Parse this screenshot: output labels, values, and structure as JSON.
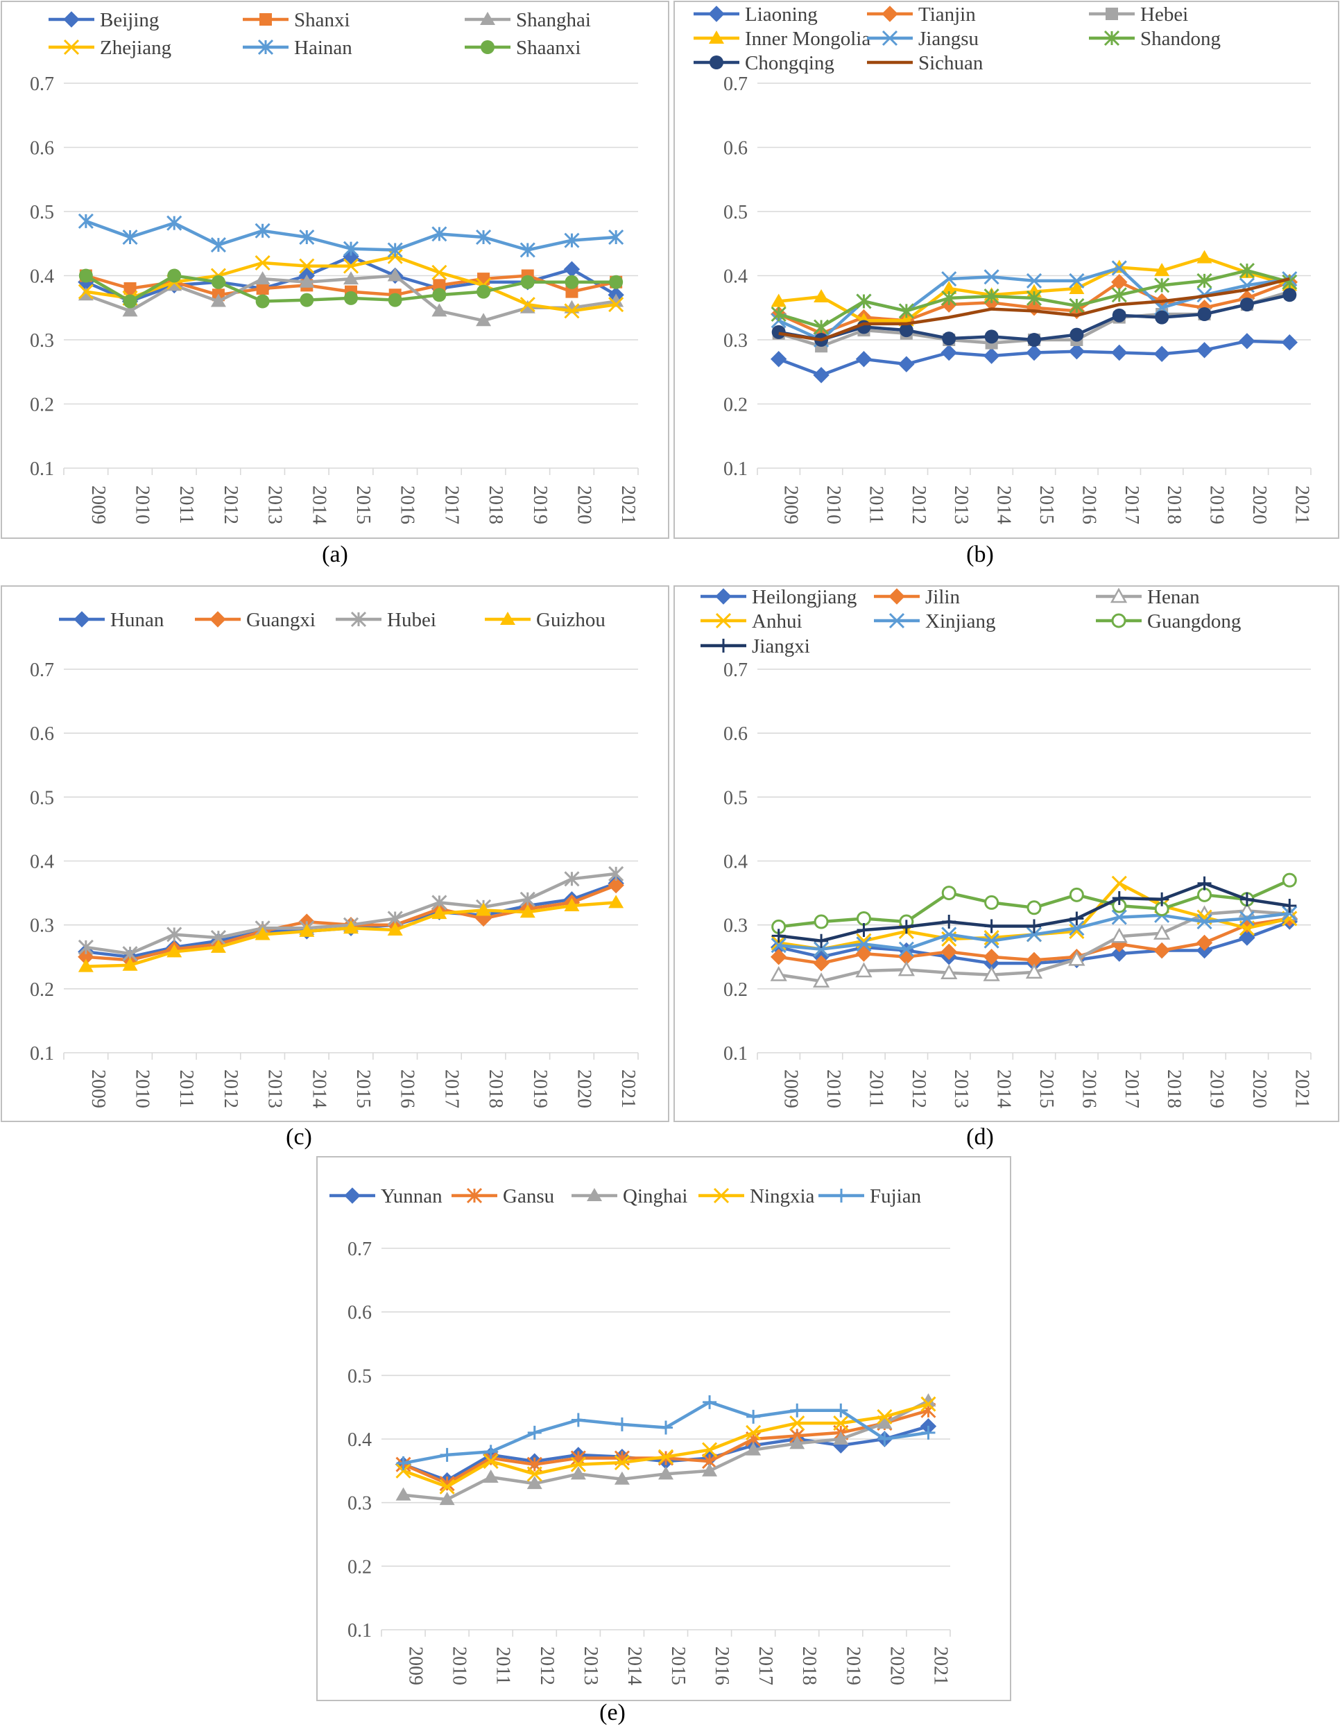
{
  "chart_data": [
    {
      "id": "a",
      "type": "line",
      "caption": "(a)",
      "categories": [
        "2009",
        "2010",
        "2011",
        "2012",
        "2013",
        "2014",
        "2015",
        "2016",
        "2017",
        "2018",
        "2019",
        "2020",
        "2021"
      ],
      "ylim": [
        0.1,
        0.7
      ],
      "yticks": [
        "0.1",
        "0.2",
        "0.3",
        "0.4",
        "0.5",
        "0.6",
        "0.7"
      ],
      "legend_columns": 3,
      "series": [
        {
          "name": "Beijing",
          "color": "#4472C4",
          "marker": "diamond",
          "values": [
            0.39,
            0.36,
            0.385,
            0.39,
            0.38,
            0.4,
            0.43,
            0.4,
            0.38,
            0.39,
            0.39,
            0.41,
            0.37
          ]
        },
        {
          "name": "Shanxi",
          "color": "#ED7D31",
          "marker": "square",
          "values": [
            0.4,
            0.38,
            0.39,
            0.37,
            0.38,
            0.385,
            0.375,
            0.37,
            0.385,
            0.395,
            0.4,
            0.375,
            0.39
          ]
        },
        {
          "name": "Shanghai",
          "color": "#A5A5A5",
          "marker": "triangle",
          "values": [
            0.37,
            0.345,
            0.385,
            0.36,
            0.395,
            0.39,
            0.395,
            0.4,
            0.345,
            0.33,
            0.35,
            0.35,
            0.36
          ]
        },
        {
          "name": "Zhejiang",
          "color": "#FFC000",
          "marker": "x",
          "values": [
            0.375,
            0.365,
            0.39,
            0.4,
            0.42,
            0.415,
            0.415,
            0.43,
            0.405,
            0.385,
            0.355,
            0.345,
            0.355
          ]
        },
        {
          "name": "Hainan",
          "color": "#5B9BD5",
          "marker": "star",
          "values": [
            0.485,
            0.46,
            0.482,
            0.448,
            0.47,
            0.46,
            0.442,
            0.44,
            0.465,
            0.46,
            0.44,
            0.455,
            0.46
          ]
        },
        {
          "name": "Shaanxi",
          "color": "#70AD47",
          "marker": "circle",
          "values": [
            0.4,
            0.36,
            0.4,
            0.39,
            0.36,
            0.362,
            0.365,
            0.362,
            0.37,
            0.375,
            0.39,
            0.39,
            0.39
          ]
        }
      ]
    },
    {
      "id": "b",
      "type": "line",
      "caption": "(b)",
      "categories": [
        "2009",
        "2010",
        "2011",
        "2012",
        "2013",
        "2014",
        "2015",
        "2016",
        "2017",
        "2018",
        "2019",
        "2020",
        "2021"
      ],
      "ylim": [
        0.1,
        0.7
      ],
      "yticks": [
        "0.1",
        "0.2",
        "0.3",
        "0.4",
        "0.5",
        "0.6",
        "0.7"
      ],
      "legend_columns": 3,
      "series": [
        {
          "name": "Liaoning",
          "color": "#4472C4",
          "marker": "diamond",
          "values": [
            0.27,
            0.245,
            0.27,
            0.262,
            0.28,
            0.275,
            0.28,
            0.282,
            0.28,
            0.278,
            0.284,
            0.298,
            0.296
          ]
        },
        {
          "name": "Tianjin",
          "color": "#ED7D31",
          "marker": "diamond",
          "values": [
            0.34,
            0.31,
            0.335,
            0.33,
            0.355,
            0.358,
            0.35,
            0.345,
            0.39,
            0.36,
            0.35,
            0.365,
            0.39
          ]
        },
        {
          "name": "Hebei",
          "color": "#A5A5A5",
          "marker": "square",
          "values": [
            0.31,
            0.29,
            0.315,
            0.31,
            0.3,
            0.295,
            0.3,
            0.3,
            0.335,
            0.34,
            0.34,
            0.355,
            0.375
          ]
        },
        {
          "name": "Inner Mongolia",
          "color": "#FFC000",
          "marker": "triangle",
          "values": [
            0.36,
            0.367,
            0.33,
            0.33,
            0.38,
            0.37,
            0.375,
            0.38,
            0.413,
            0.408,
            0.428,
            0.405,
            0.385
          ]
        },
        {
          "name": "Jiangsu",
          "color": "#5B9BD5",
          "marker": "x",
          "values": [
            0.33,
            0.3,
            0.36,
            0.345,
            0.395,
            0.398,
            0.392,
            0.392,
            0.412,
            0.35,
            0.37,
            0.385,
            0.395
          ]
        },
        {
          "name": "Shandong",
          "color": "#70AD47",
          "marker": "star",
          "values": [
            0.34,
            0.32,
            0.36,
            0.345,
            0.365,
            0.368,
            0.365,
            0.353,
            0.37,
            0.385,
            0.392,
            0.408,
            0.39
          ]
        },
        {
          "name": "Chongqing",
          "color": "#264478",
          "marker": "circle",
          "values": [
            0.312,
            0.3,
            0.32,
            0.315,
            0.302,
            0.305,
            0.3,
            0.308,
            0.338,
            0.335,
            0.34,
            0.355,
            0.37
          ]
        },
        {
          "name": "Sichuan",
          "color": "#9E480E",
          "marker": "none",
          "values": [
            0.31,
            0.3,
            0.325,
            0.325,
            0.335,
            0.348,
            0.345,
            0.338,
            0.355,
            0.36,
            0.368,
            0.378,
            0.395
          ]
        }
      ]
    },
    {
      "id": "c",
      "type": "line",
      "caption": "(c)",
      "categories": [
        "2009",
        "2010",
        "2011",
        "2012",
        "2013",
        "2014",
        "2015",
        "2016",
        "2017",
        "2018",
        "2019",
        "2020",
        "2021"
      ],
      "ylim": [
        0.1,
        0.7
      ],
      "yticks": [
        "0.1",
        "0.2",
        "0.3",
        "0.4",
        "0.5",
        "0.6",
        "0.7"
      ],
      "legend_columns": 4,
      "series": [
        {
          "name": "Hunan",
          "color": "#4472C4",
          "marker": "diamond",
          "values": [
            0.258,
            0.25,
            0.265,
            0.275,
            0.29,
            0.29,
            0.295,
            0.3,
            0.32,
            0.315,
            0.33,
            0.34,
            0.365
          ]
        },
        {
          "name": "Guangxi",
          "color": "#ED7D31",
          "marker": "diamond",
          "values": [
            0.25,
            0.245,
            0.262,
            0.27,
            0.29,
            0.305,
            0.3,
            0.3,
            0.325,
            0.31,
            0.325,
            0.335,
            0.362
          ]
        },
        {
          "name": "Hubei",
          "color": "#A5A5A5",
          "marker": "star",
          "values": [
            0.265,
            0.255,
            0.285,
            0.28,
            0.295,
            0.295,
            0.3,
            0.31,
            0.335,
            0.328,
            0.34,
            0.372,
            0.38
          ]
        },
        {
          "name": "Guizhou",
          "color": "#FFC000",
          "marker": "triangle",
          "values": [
            0.235,
            0.237,
            0.258,
            0.265,
            0.285,
            0.29,
            0.295,
            0.292,
            0.318,
            0.323,
            0.32,
            0.33,
            0.335
          ]
        }
      ]
    },
    {
      "id": "d",
      "type": "line",
      "caption": "(d)",
      "categories": [
        "2009",
        "2010",
        "2011",
        "2012",
        "2013",
        "2014",
        "2015",
        "2016",
        "2017",
        "2018",
        "2019",
        "2020",
        "2021"
      ],
      "ylim": [
        0.1,
        0.7
      ],
      "yticks": [
        "0.1",
        "0.2",
        "0.3",
        "0.4",
        "0.5",
        "0.6",
        "0.7"
      ],
      "legend_columns": 3,
      "series": [
        {
          "name": "Heilongjiang",
          "color": "#4472C4",
          "marker": "diamond",
          "values": [
            0.265,
            0.25,
            0.265,
            0.26,
            0.25,
            0.24,
            0.24,
            0.245,
            0.255,
            0.26,
            0.26,
            0.28,
            0.305
          ]
        },
        {
          "name": "Jilin",
          "color": "#ED7D31",
          "marker": "diamond",
          "values": [
            0.25,
            0.24,
            0.255,
            0.25,
            0.258,
            0.25,
            0.245,
            0.25,
            0.27,
            0.26,
            0.272,
            0.3,
            0.31
          ]
        },
        {
          "name": "Henan",
          "color": "#A5A5A5",
          "marker": "tri-open",
          "values": [
            0.222,
            0.212,
            0.228,
            0.23,
            0.225,
            0.222,
            0.226,
            0.246,
            0.282,
            0.287,
            0.317,
            0.322,
            0.317
          ]
        },
        {
          "name": "Anhui",
          "color": "#FFC000",
          "marker": "x",
          "values": [
            0.272,
            0.262,
            0.275,
            0.29,
            0.278,
            0.28,
            0.285,
            0.29,
            0.365,
            0.33,
            0.312,
            0.295,
            0.31
          ]
        },
        {
          "name": "Xinjiang",
          "color": "#5B9BD5",
          "marker": "x",
          "values": [
            0.268,
            0.262,
            0.27,
            0.262,
            0.285,
            0.275,
            0.285,
            0.295,
            0.312,
            0.315,
            0.305,
            0.31,
            0.318
          ]
        },
        {
          "name": "Guangdong",
          "color": "#70AD47",
          "marker": "circle-open",
          "values": [
            0.297,
            0.305,
            0.31,
            0.305,
            0.35,
            0.335,
            0.327,
            0.347,
            0.33,
            0.325,
            0.347,
            0.34,
            0.37
          ]
        },
        {
          "name": "Jiangxi",
          "color": "#1F3864",
          "marker": "plus",
          "values": [
            0.283,
            0.275,
            0.292,
            0.297,
            0.305,
            0.298,
            0.298,
            0.31,
            0.342,
            0.34,
            0.365,
            0.34,
            0.33
          ]
        }
      ]
    },
    {
      "id": "e",
      "type": "line",
      "caption": "(e)",
      "categories": [
        "2009",
        "2010",
        "2011",
        "2012",
        "2013",
        "2014",
        "2015",
        "2016",
        "2017",
        "2018",
        "2019",
        "2020",
        "2021"
      ],
      "ylim": [
        0.1,
        0.7
      ],
      "yticks": [
        "0.1",
        "0.2",
        "0.3",
        "0.4",
        "0.5",
        "0.6",
        "0.7"
      ],
      "legend_columns": 5,
      "series": [
        {
          "name": "Yunnan",
          "color": "#4472C4",
          "marker": "diamond",
          "values": [
            0.36,
            0.335,
            0.375,
            0.365,
            0.375,
            0.372,
            0.365,
            0.37,
            0.39,
            0.4,
            0.39,
            0.4,
            0.42
          ]
        },
        {
          "name": "Gansu",
          "color": "#ED7D31",
          "marker": "star",
          "values": [
            0.36,
            0.33,
            0.37,
            0.36,
            0.37,
            0.37,
            0.37,
            0.365,
            0.4,
            0.405,
            0.41,
            0.425,
            0.445
          ]
        },
        {
          "name": "Qinghai",
          "color": "#A5A5A5",
          "marker": "triangle",
          "values": [
            0.312,
            0.305,
            0.34,
            0.33,
            0.345,
            0.337,
            0.345,
            0.35,
            0.383,
            0.393,
            0.4,
            0.425,
            0.46
          ]
        },
        {
          "name": "Ningxia",
          "color": "#FFC000",
          "marker": "x",
          "values": [
            0.35,
            0.325,
            0.365,
            0.345,
            0.36,
            0.363,
            0.372,
            0.383,
            0.41,
            0.425,
            0.425,
            0.435,
            0.455
          ]
        },
        {
          "name": "Fujian",
          "color": "#5B9BD5",
          "marker": "plus",
          "values": [
            0.362,
            0.375,
            0.38,
            0.41,
            0.43,
            0.423,
            0.418,
            0.458,
            0.435,
            0.445,
            0.445,
            0.4,
            0.41
          ]
        }
      ]
    }
  ]
}
